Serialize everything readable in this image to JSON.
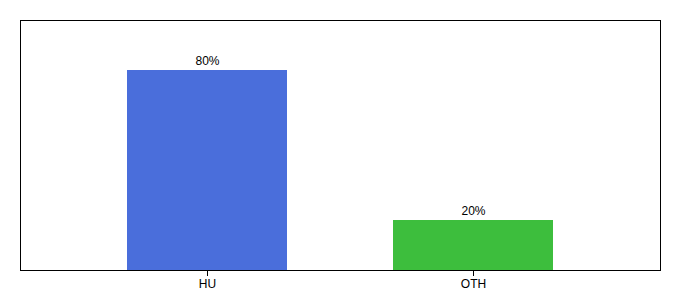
{
  "chart_data": {
    "type": "bar",
    "categories": [
      "HU",
      "OTH"
    ],
    "values": [
      80,
      20
    ],
    "value_labels": [
      "80%",
      "20%"
    ],
    "colors": [
      "#4a6edb",
      "#3dbe3d"
    ],
    "ylim": [
      0,
      100
    ],
    "data_labels": true,
    "tick_labels": "x",
    "grid": false
  }
}
